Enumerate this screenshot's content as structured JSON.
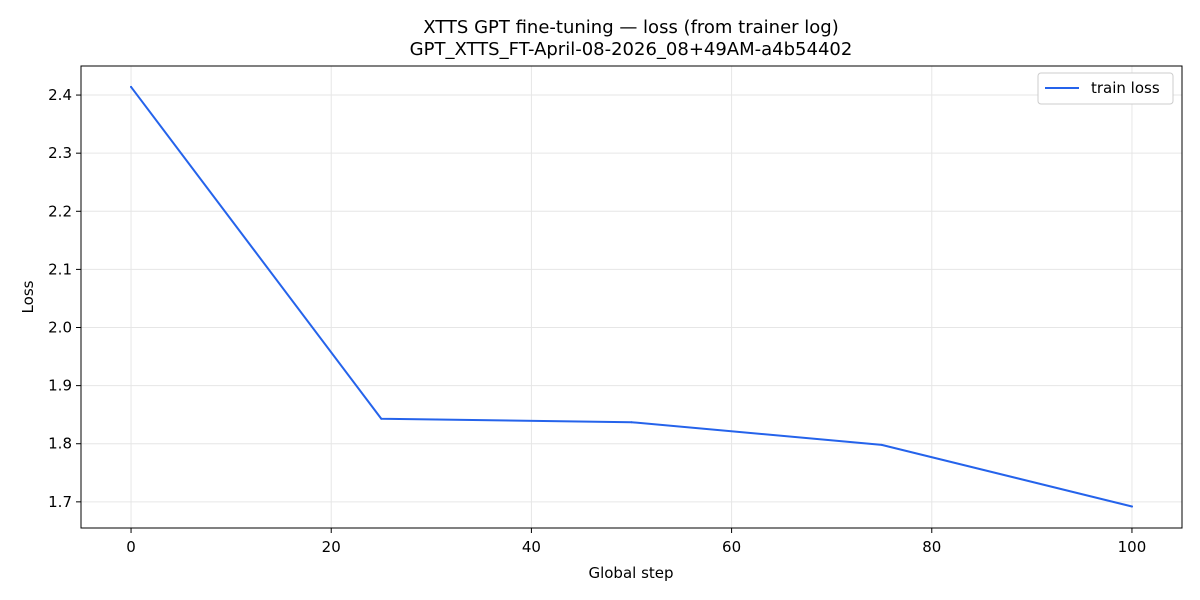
{
  "chart_data": {
    "type": "line",
    "title": "XTTS GPT fine-tuning — loss (from trainer log)",
    "subtitle": "GPT_XTTS_FT-April-08-2026_08+49AM-a4b54402",
    "xlabel": "Global step",
    "ylabel": "Loss",
    "xlim": [
      -5,
      105
    ],
    "ylim": [
      1.655,
      2.45
    ],
    "xticks": [
      0,
      20,
      40,
      60,
      80,
      100
    ],
    "yticks": [
      1.7,
      1.8,
      1.9,
      2.0,
      2.1,
      2.2,
      2.3,
      2.4
    ],
    "ytick_labels": [
      "1.7",
      "1.8",
      "1.9",
      "2.0",
      "2.1",
      "2.2",
      "2.3",
      "2.4"
    ],
    "grid": true,
    "legend_position": "top-right",
    "series": [
      {
        "name": "train loss",
        "color": "#2563eb",
        "x": [
          0,
          25,
          50,
          75,
          100
        ],
        "y": [
          2.414,
          1.843,
          1.837,
          1.798,
          1.692
        ]
      }
    ]
  }
}
